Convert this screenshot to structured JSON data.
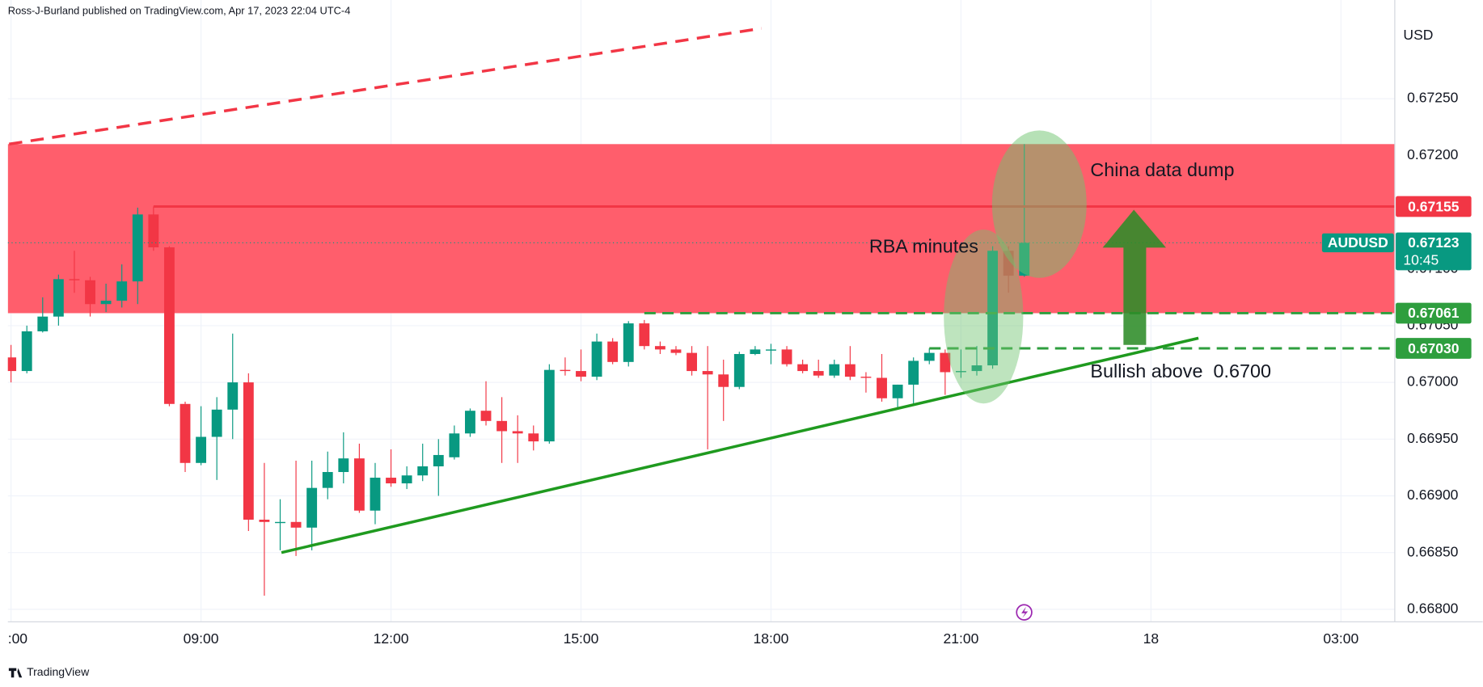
{
  "header": "Ross-J-Burland published on TradingView.com, Apr 17, 2023 22:04 UTC-4",
  "footer": "TradingView",
  "chart_data": {
    "type": "candlestick",
    "symbol": "AUDUSD",
    "currency": "USD",
    "countdown": "10:45",
    "last_price": 0.67123,
    "x": [
      6,
      6.25,
      6.5,
      6.75,
      7,
      7.25,
      7.5,
      7.75,
      8,
      8.25,
      8.5,
      8.75,
      9,
      9.25,
      9.5,
      9.75,
      10,
      10.25,
      10.5,
      10.75,
      11,
      11.25,
      11.5,
      11.75,
      12,
      12.25,
      12.5,
      12.75,
      13,
      13.25,
      13.5,
      13.75,
      14,
      14.25,
      14.5,
      14.75,
      15,
      15.25,
      15.5,
      15.75,
      16,
      16.25,
      16.5,
      16.75,
      17,
      17.25,
      17.5,
      17.75,
      18,
      18.25,
      18.5,
      18.75,
      19,
      19.25,
      19.5,
      19.75,
      20,
      20.25,
      20.5,
      20.75,
      21,
      21.25,
      21.5,
      21.75,
      22
    ],
    "open": [
      0.67022,
      0.6701,
      0.67045,
      0.67058,
      0.67091,
      0.6709,
      0.67069,
      0.67072,
      0.67089,
      0.67148,
      0.67119,
      0.66981,
      0.66929,
      0.66952,
      0.66976,
      0.67,
      0.66879,
      0.66876,
      0.66877,
      0.66872,
      0.66907,
      0.66921,
      0.66933,
      0.66887,
      0.66916,
      0.66911,
      0.66918,
      0.66926,
      0.66934,
      0.66955,
      0.66975,
      0.66966,
      0.66957,
      0.66955,
      0.66948,
      0.67011,
      0.6701,
      0.67005,
      0.67036,
      0.67018,
      0.67052,
      0.67032,
      0.67029,
      0.67026,
      0.6701,
      0.67007,
      0.66996,
      0.67025,
      0.67028,
      0.67029,
      0.67016,
      0.6701,
      0.67006,
      0.67016,
      0.67005,
      0.67004,
      0.66986,
      0.66998,
      0.67019,
      0.67026,
      0.67009,
      0.6701,
      0.67015,
      0.67116,
      0.67094
    ],
    "high": [
      0.67033,
      0.6705,
      0.67075,
      0.67095,
      0.67116,
      0.67093,
      0.67087,
      0.67104,
      0.67154,
      0.67155,
      0.6712,
      0.66983,
      0.66979,
      0.66987,
      0.67043,
      0.67008,
      0.66929,
      0.66897,
      0.66931,
      0.66931,
      0.66939,
      0.66956,
      0.66946,
      0.66929,
      0.66941,
      0.66926,
      0.66946,
      0.6695,
      0.66962,
      0.66977,
      0.67001,
      0.66987,
      0.66971,
      0.66962,
      0.67016,
      0.67022,
      0.67029,
      0.67043,
      0.67039,
      0.67054,
      0.67055,
      0.67036,
      0.67032,
      0.67032,
      0.67032,
      0.6702,
      0.67027,
      0.67032,
      0.67034,
      0.67032,
      0.6702,
      0.6702,
      0.6702,
      0.67032,
      0.67009,
      0.67025,
      0.66998,
      0.67022,
      0.6703,
      0.67029,
      0.67029,
      0.67032,
      0.6712,
      0.6712,
      0.6721
    ],
    "low": [
      0.67,
      0.67008,
      0.67044,
      0.6705,
      0.67079,
      0.67058,
      0.67062,
      0.67066,
      0.67069,
      0.67116,
      0.66979,
      0.66921,
      0.66927,
      0.66914,
      0.6695,
      0.66869,
      0.66812,
      0.66852,
      0.66847,
      0.66852,
      0.66897,
      0.66911,
      0.66885,
      0.66875,
      0.66908,
      0.66906,
      0.66913,
      0.669,
      0.66932,
      0.66952,
      0.66962,
      0.66929,
      0.66929,
      0.6694,
      0.66946,
      0.67006,
      0.67001,
      0.67002,
      0.67016,
      0.67014,
      0.67029,
      0.67025,
      0.67024,
      0.67006,
      0.66941,
      0.66966,
      0.66994,
      0.67024,
      0.67016,
      0.67014,
      0.67008,
      0.67004,
      0.67004,
      0.67002,
      0.66991,
      0.66983,
      0.66977,
      0.66981,
      0.67016,
      0.66989,
      0.67004,
      0.67006,
      0.67012,
      0.67079,
      0.67093
    ],
    "close": [
      0.6701,
      0.67045,
      0.67058,
      0.67091,
      0.6709,
      0.67069,
      0.67072,
      0.67089,
      0.67148,
      0.67119,
      0.66981,
      0.66929,
      0.66952,
      0.66976,
      0.67,
      0.66879,
      0.66877,
      0.66877,
      0.66872,
      0.66907,
      0.66921,
      0.66933,
      0.66887,
      0.66916,
      0.66911,
      0.66918,
      0.66926,
      0.66936,
      0.66955,
      0.66975,
      0.66966,
      0.66957,
      0.66955,
      0.66948,
      0.67011,
      0.6701,
      0.67005,
      0.67036,
      0.67018,
      0.67052,
      0.67032,
      0.67029,
      0.67026,
      0.6701,
      0.67007,
      0.66996,
      0.67025,
      0.67029,
      0.67029,
      0.67016,
      0.6701,
      0.67006,
      0.67016,
      0.67005,
      0.67004,
      0.66986,
      0.66998,
      0.67019,
      0.67026,
      0.67009,
      0.6701,
      0.67015,
      0.67116,
      0.67094,
      0.67123
    ],
    "up_color": "#089981",
    "down_color": "#f23645",
    "xlim": [
      5.95,
      27.85
    ],
    "ylim": [
      0.66789,
      0.67337
    ],
    "xticks": [
      {
        "value": 6,
        "label": ":00"
      },
      {
        "value": 9,
        "label": "09:00"
      },
      {
        "value": 12,
        "label": "12:00"
      },
      {
        "value": 15,
        "label": "15:00"
      },
      {
        "value": 18,
        "label": "18:00"
      },
      {
        "value": 21,
        "label": "21:00"
      },
      {
        "value": 24,
        "label": "18"
      },
      {
        "value": 27,
        "label": "03:00"
      }
    ],
    "yticks": [
      {
        "value": 0.668,
        "label": "0.66800"
      },
      {
        "value": 0.6685,
        "label": "0.66850"
      },
      {
        "value": 0.669,
        "label": "0.66900"
      },
      {
        "value": 0.6695,
        "label": "0.66950"
      },
      {
        "value": 0.67,
        "label": "0.67000"
      },
      {
        "value": 0.6705,
        "label": "0.67050"
      },
      {
        "value": 0.671,
        "label": "0.67100"
      },
      {
        "value": 0.6715,
        "label": "0.67150"
      },
      {
        "value": 0.672,
        "label": "0.67200"
      },
      {
        "value": 0.6725,
        "label": "0.67250"
      }
    ],
    "zone": [
      0.67061,
      0.6721
    ],
    "zone_color": "#ff5e6c",
    "levels": [
      {
        "value": 0.67155,
        "color": "#f23645",
        "style": "solid",
        "from": 8.25
      },
      {
        "value": 0.67061,
        "color": "#2e9e3e",
        "style": "dashed",
        "from": 16
      },
      {
        "value": 0.6703,
        "label": "0.67030",
        "color": "#2e9e3e",
        "style": "dashed",
        "from": 20.5
      }
    ],
    "trendlines": [
      {
        "points": [
          [
            5.97,
            0.6721
          ],
          [
            17.85,
            0.67312
          ]
        ],
        "color": "#f23645",
        "style": "dashed"
      },
      {
        "points": [
          [
            10.27,
            0.6685
          ],
          [
            24.75,
            0.67039
          ]
        ],
        "color": "#1f9a1f",
        "style": "solid"
      }
    ],
    "annotations": [
      "China data dump",
      "RBA minutes",
      "Bullish above  0.6700"
    ]
  }
}
